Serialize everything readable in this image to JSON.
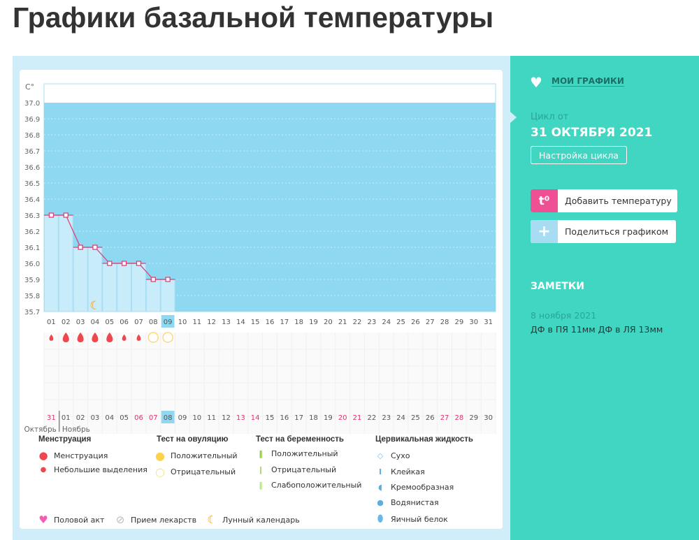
{
  "title": "Графики базальной температуры",
  "colors": {
    "plot_bg": "#8fd8f1",
    "bar": "#c9ecfa",
    "line": "#d9437a",
    "accent": "#40d6c1",
    "weekend": "#e0336b",
    "today": "#8fd8f1"
  },
  "chart_data": {
    "type": "line",
    "ylabel": "C°",
    "ylim": [
      35.7,
      37.0
    ],
    "yticks": [
      "37.0",
      "36.9",
      "36.8",
      "36.7",
      "36.6",
      "36.5",
      "36.4",
      "36.3",
      "36.2",
      "36.1",
      "36.0",
      "35.9",
      "35.8",
      "35.7"
    ],
    "cycle_days": [
      "01",
      "02",
      "03",
      "04",
      "05",
      "06",
      "07",
      "08",
      "09",
      "10",
      "11",
      "12",
      "13",
      "14",
      "15",
      "16",
      "17",
      "18",
      "19",
      "20",
      "21",
      "22",
      "23",
      "24",
      "25",
      "26",
      "27",
      "28",
      "29",
      "30",
      "31"
    ],
    "current_cycle_day": "09",
    "temperatures": [
      36.3,
      36.3,
      36.1,
      36.1,
      36.0,
      36.0,
      36.0,
      35.9,
      35.9
    ],
    "menstruation": [
      "small",
      "large",
      "large",
      "large",
      "large",
      "small",
      "small",
      null,
      null
    ],
    "ovulation_test": [
      null,
      null,
      null,
      null,
      null,
      null,
      null,
      "negative",
      "negative"
    ],
    "moon_days": [
      "04"
    ],
    "dates": [
      "31",
      "01",
      "02",
      "03",
      "04",
      "05",
      "06",
      "07",
      "08",
      "09",
      "10",
      "11",
      "12",
      "13",
      "14",
      "15",
      "16",
      "17",
      "18",
      "19",
      "20",
      "21",
      "22",
      "23",
      "24",
      "25",
      "26",
      "27",
      "28",
      "29",
      "30"
    ],
    "weekend_dates": [
      "31",
      "06",
      "07",
      "13",
      "14",
      "20",
      "21",
      "27",
      "28"
    ],
    "today_date": "08",
    "months": [
      "Октябрь",
      "Ноябрь"
    ],
    "grid": true
  },
  "legend": {
    "menstruation": {
      "title": "Менструация",
      "items": [
        "Менструация",
        "Небольшие выделения"
      ]
    },
    "ovulation": {
      "title": "Тест на овуляцию",
      "items": [
        "Положительный",
        "Отрицательный"
      ]
    },
    "pregnancy": {
      "title": "Тест на беременность",
      "items": [
        "Положительный",
        "Отрицательный",
        "Слабоположительный"
      ]
    },
    "cervical": {
      "title": "Цервикальная жидкость",
      "items": [
        "Сухо",
        "Клейкая",
        "Кремообразная",
        "Водянистая",
        "Яичный белок"
      ]
    },
    "other": [
      "Половой акт",
      "Прием лекарств",
      "Лунный календарь"
    ]
  },
  "sidebar": {
    "my_charts": "МОИ ГРАФИКИ",
    "cycle_label": "Цикл от",
    "cycle_date": "31 ОКТЯБРЯ 2021",
    "cycle_settings": "Настройка цикла",
    "add_temp_icon": "t⁰",
    "add_temp": "Добавить температуру",
    "share": "Поделиться графиком",
    "notes_title": "ЗАМЕТКИ",
    "note_date": "8 ноября 2021",
    "note_text": "ДФ в ПЯ 11мм ДФ в ЛЯ 13мм"
  }
}
